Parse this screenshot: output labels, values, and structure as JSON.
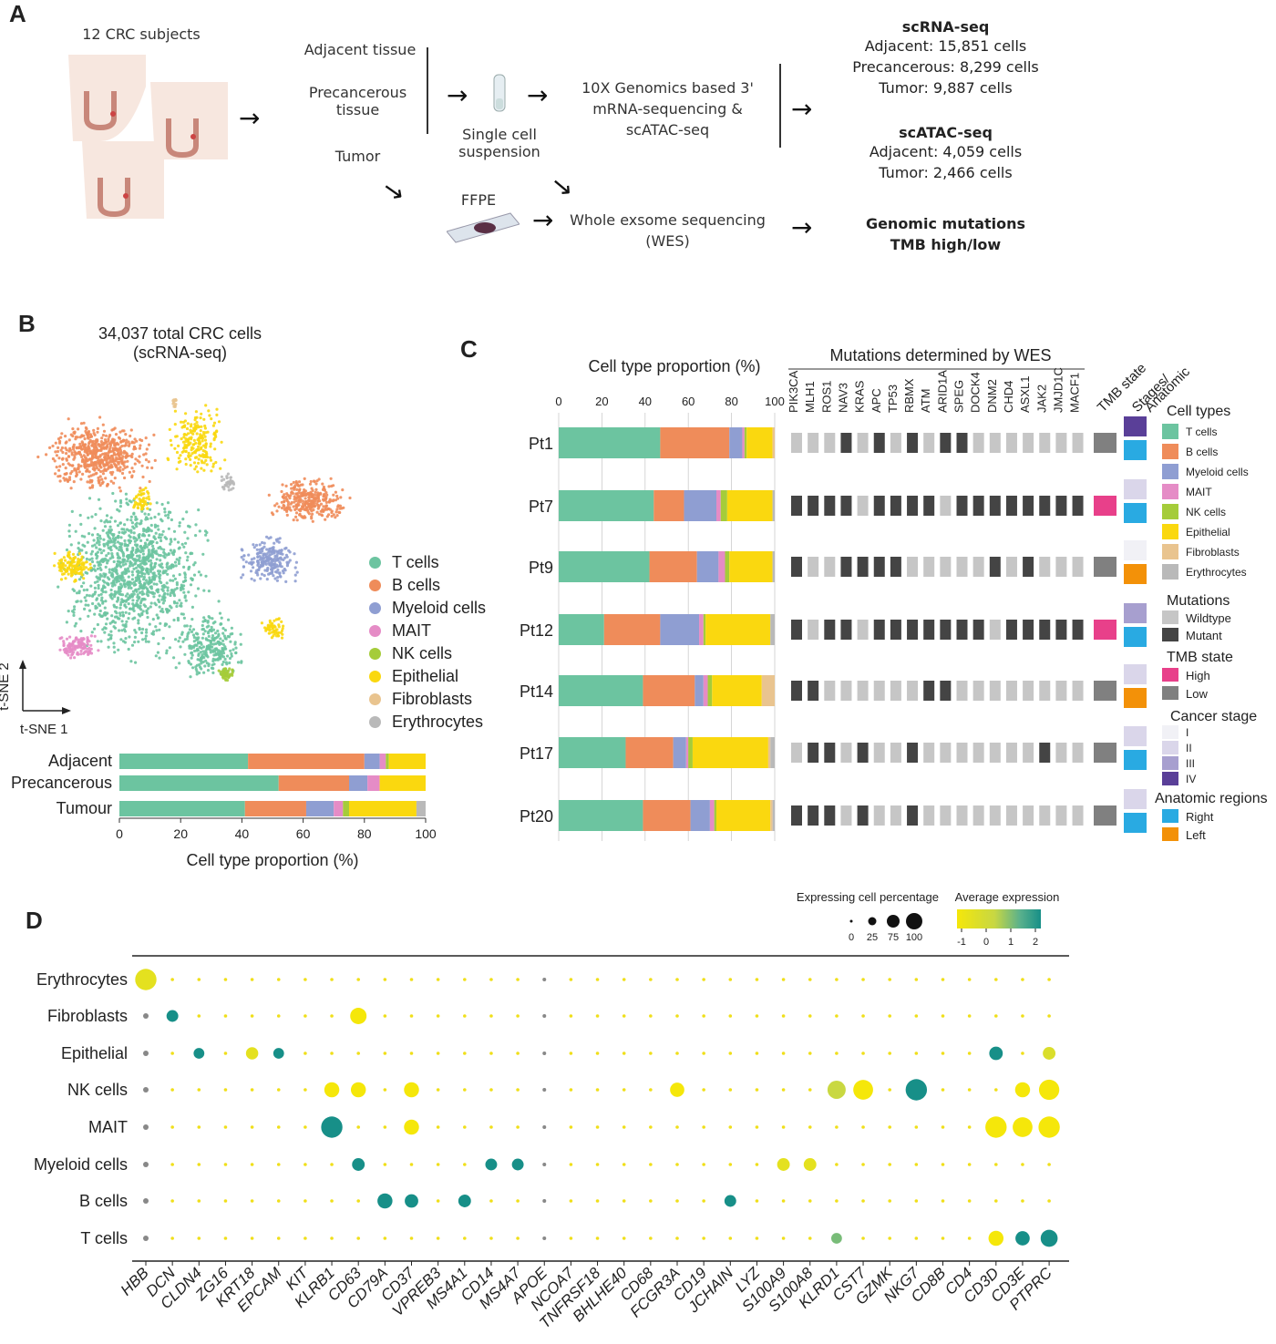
{
  "panelA": {
    "letter": "A",
    "subjects": "12 CRC subjects",
    "tissues": [
      "Adjacent tissue",
      "Precancerous tissue",
      "Tumor"
    ],
    "single_cell": "Single cell suspension",
    "genomics": "10X Genomics based 3' mRNA-sequencing & scATAC-seq",
    "ffpe": "FFPE",
    "wes": "Whole exsome sequencing (WES)",
    "scrna": {
      "title": "scRNA-seq",
      "lines": [
        "Adjacent: 15,851 cells",
        "Precancerous: 8,299 cells",
        "Tumor: 9,887 cells"
      ]
    },
    "scatac": {
      "title": "scATAC-seq",
      "lines": [
        "Adjacent: 4,059 cells",
        "Tumor: 2,466 cells"
      ]
    },
    "genomic": {
      "lines": [
        "Genomic mutations",
        "TMB high/low"
      ]
    },
    "colors": {
      "scrna_bg": "#eef4f1",
      "scatac_bg": "#ecf3d8",
      "genomic_bg": "#f3f1f6"
    }
  },
  "panelB": {
    "letter": "B",
    "title": "34,037 total CRC cells",
    "subtitle": "(scRNA-seq)",
    "axis_y": "t-SNE 2",
    "axis_x": "t-SNE 1",
    "legend": [
      "T cells",
      "B cells",
      "Myeloid cells",
      "MAIT",
      "NK cells",
      "Epithelial",
      "Fibroblasts",
      "Erythrocytes"
    ]
  },
  "panelC": {
    "letter": "C",
    "bar_title": "Cell type proportion (%)",
    "mut_title": "Mutations determined by WES",
    "tmb_header": "TMB state",
    "stage_header": "Stages/ Anatomic",
    "genes": [
      "PIK3CA",
      "MLH1",
      "ROS1",
      "NAV3",
      "KRAS",
      "APC",
      "TP53",
      "RBMX",
      "ATM",
      "ARID1A",
      "SPEG",
      "DOCK4",
      "DNM2",
      "CHD4",
      "ASXL1",
      "JAK2",
      "JMJD1C",
      "MACF1"
    ],
    "legend": {
      "cell_types_title": "Cell types",
      "mutations_title": "Mutations",
      "mutations": [
        "Wildtype",
        "Mutant"
      ],
      "tmb_title": "TMB state",
      "tmb": [
        "High",
        "Low"
      ],
      "stage_title": "Cancer stage",
      "stages": [
        "I",
        "II",
        "III",
        "IV"
      ],
      "anat_title": "Anatomic regions",
      "anat": [
        "Right",
        "Left"
      ]
    },
    "patients": [
      {
        "id": "Pt1",
        "mut": [
          0,
          0,
          0,
          1,
          0,
          1,
          0,
          1,
          0,
          1,
          1,
          0,
          0,
          0,
          0,
          0,
          0,
          0
        ],
        "tmb": "Low",
        "stage": "IV",
        "anat": "Right"
      },
      {
        "id": "Pt7",
        "mut": [
          1,
          1,
          1,
          1,
          0,
          1,
          1,
          1,
          1,
          0,
          1,
          1,
          1,
          1,
          1,
          1,
          1,
          1
        ],
        "tmb": "High",
        "stage": "II",
        "anat": "Right"
      },
      {
        "id": "Pt9",
        "mut": [
          1,
          0,
          0,
          1,
          1,
          1,
          1,
          0,
          0,
          0,
          0,
          0,
          1,
          0,
          1,
          0,
          0,
          0
        ],
        "tmb": "Low",
        "stage": "I",
        "anat": "Left"
      },
      {
        "id": "Pt12",
        "mut": [
          1,
          0,
          1,
          1,
          0,
          1,
          1,
          1,
          1,
          1,
          1,
          1,
          0,
          1,
          1,
          1,
          1,
          1
        ],
        "tmb": "High",
        "stage": "III",
        "anat": "Right"
      },
      {
        "id": "Pt14",
        "mut": [
          1,
          1,
          0,
          0,
          0,
          0,
          0,
          0,
          1,
          1,
          0,
          0,
          0,
          0,
          0,
          0,
          0,
          0
        ],
        "tmb": "Low",
        "stage": "II",
        "anat": "Left"
      },
      {
        "id": "Pt17",
        "mut": [
          0,
          1,
          1,
          0,
          1,
          0,
          0,
          1,
          0,
          0,
          0,
          0,
          0,
          0,
          0,
          1,
          0,
          0
        ],
        "tmb": "Low",
        "stage": "II",
        "anat": "Right"
      },
      {
        "id": "Pt20",
        "mut": [
          1,
          1,
          1,
          0,
          1,
          0,
          0,
          1,
          0,
          0,
          0,
          0,
          0,
          0,
          0,
          0,
          0,
          0
        ],
        "tmb": "Low",
        "stage": "II",
        "anat": "Right"
      }
    ]
  },
  "panelD": {
    "letter": "D",
    "legend_pct_title": "Expressing cell percentage",
    "legend_pct_ticks": [
      "0",
      "25",
      "75",
      "100"
    ],
    "legend_expr_title": "Average expression",
    "legend_expr_ticks": [
      "-1",
      "0",
      "1",
      "2"
    ]
  },
  "colors": {
    "T cells": "#6cc4a0",
    "B cells": "#ef8c5a",
    "Myeloid cells": "#8f9ed2",
    "MAIT": "#e58cc6",
    "NK cells": "#a5cc3a",
    "Epithelial": "#fad80f",
    "Fibroblasts": "#e9c48f",
    "Erythrocytes": "#b9b9b9",
    "wildtype": "#c6c6c6",
    "mutant": "#444444",
    "tmb_high": "#e8408a",
    "tmb_low": "#808080",
    "stage_I": "#f1f1f6",
    "stage_II": "#dad6ea",
    "stage_III": "#a79fcf",
    "stage_IV": "#5a3f98",
    "right": "#29aae2",
    "left": "#f39108"
  },
  "chart_data": [
    {
      "type": "bar",
      "orientation": "horizontal-stacked",
      "categories": [
        "Adjacent",
        "Precancerous",
        "Tumour"
      ],
      "xlabel": "Cell type proportion (%)",
      "xlim": [
        0,
        100
      ],
      "xticks": [
        "0",
        "20",
        "40",
        "60",
        "80",
        "100"
      ],
      "series": [
        {
          "name": "T cells",
          "values": [
            42,
            52,
            41
          ]
        },
        {
          "name": "B cells",
          "values": [
            38,
            23,
            20
          ]
        },
        {
          "name": "Myeloid cells",
          "values": [
            5,
            6,
            9
          ]
        },
        {
          "name": "MAIT",
          "values": [
            2,
            4,
            3
          ]
        },
        {
          "name": "NK cells",
          "values": [
            1,
            0,
            2
          ]
        },
        {
          "name": "Epithelial",
          "values": [
            12,
            15,
            22
          ]
        },
        {
          "name": "Fibroblasts",
          "values": [
            0,
            0,
            0
          ]
        },
        {
          "name": "Erythrocytes",
          "values": [
            0,
            0,
            3
          ]
        }
      ]
    },
    {
      "type": "bar",
      "orientation": "horizontal-stacked",
      "categories": [
        "Pt1",
        "Pt7",
        "Pt9",
        "Pt12",
        "Pt14",
        "Pt17",
        "Pt20"
      ],
      "xlabel": "Cell type proportion (%)",
      "xlim": [
        0,
        100
      ],
      "xticks": [
        "0",
        "20",
        "40",
        "60",
        "80",
        "100"
      ],
      "series": [
        {
          "name": "T cells",
          "values": [
            47,
            44,
            42,
            21,
            39,
            31,
            39
          ]
        },
        {
          "name": "B cells",
          "values": [
            32,
            14,
            22,
            26,
            24,
            22,
            22
          ]
        },
        {
          "name": "Myeloid cells",
          "values": [
            6,
            15,
            10,
            18,
            4,
            6,
            9
          ]
        },
        {
          "name": "MAIT",
          "values": [
            1,
            2,
            3,
            2,
            2,
            1,
            2
          ]
        },
        {
          "name": "NK cells",
          "values": [
            1,
            3,
            2,
            1,
            2,
            2,
            1
          ]
        },
        {
          "name": "Epithelial",
          "values": [
            12,
            21,
            20,
            30,
            23,
            35,
            25
          ]
        },
        {
          "name": "Fibroblasts",
          "values": [
            1,
            0,
            0,
            0,
            6,
            1,
            1
          ]
        },
        {
          "name": "Erythrocytes",
          "values": [
            0,
            1,
            1,
            2,
            0,
            2,
            1
          ]
        }
      ]
    },
    {
      "type": "scatter",
      "subtype": "dotplot",
      "genes": [
        "HBB",
        "DCN",
        "CLDN4",
        "ZG16",
        "KRT18",
        "EPCAM",
        "KIT",
        "KLRB1",
        "CD63",
        "CD79A",
        "CD37",
        "VPREB3",
        "MS4A1",
        "CD14",
        "MS4A7",
        "APOE",
        "NCOA7",
        "TNFRSF18",
        "BHLHE40",
        "CD68",
        "FCGR3A",
        "CD19",
        "JCHAIN",
        "LYZ",
        "S100A9",
        "S100A8",
        "KLRD1",
        "CST7",
        "GZMK",
        "NKG7",
        "CD8B",
        "CD4",
        "CD3D",
        "CD3E",
        "PTPRC"
      ],
      "cell_types": [
        "Erythrocytes",
        "Fibroblasts",
        "Epithelial",
        "NK cells",
        "MAIT",
        "Myeloid cells",
        "B cells",
        "T cells"
      ],
      "pct_range": [
        0,
        100
      ],
      "expr_range": [
        -1,
        2
      ],
      "points": [
        {
          "cell": "Erythrocytes",
          "gene": "HBB",
          "pct": 100,
          "expr": -0.5
        },
        {
          "cell": "Fibroblasts",
          "gene": "DCN",
          "pct": 25,
          "expr": 2
        },
        {
          "cell": "Fibroblasts",
          "gene": "CD63",
          "pct": 55,
          "expr": -1
        },
        {
          "cell": "Epithelial",
          "gene": "CLDN4",
          "pct": 20,
          "expr": 2
        },
        {
          "cell": "Epithelial",
          "gene": "KRT18",
          "pct": 28,
          "expr": -0.5
        },
        {
          "cell": "Epithelial",
          "gene": "EPCAM",
          "pct": 20,
          "expr": 2
        },
        {
          "cell": "Epithelial",
          "gene": "CD3D",
          "pct": 35,
          "expr": 2
        },
        {
          "cell": "Epithelial",
          "gene": "PTPRC",
          "pct": 30,
          "expr": -0.2
        },
        {
          "cell": "NK cells",
          "gene": "KLRB1",
          "pct": 45,
          "expr": -1
        },
        {
          "cell": "NK cells",
          "gene": "CD63",
          "pct": 45,
          "expr": -1
        },
        {
          "cell": "NK cells",
          "gene": "CD37",
          "pct": 45,
          "expr": -1
        },
        {
          "cell": "NK cells",
          "gene": "FCGR3A",
          "pct": 40,
          "expr": -1
        },
        {
          "cell": "NK cells",
          "gene": "KLRD1",
          "pct": 70,
          "expr": 0.3
        },
        {
          "cell": "NK cells",
          "gene": "CST7",
          "pct": 85,
          "expr": -1
        },
        {
          "cell": "NK cells",
          "gene": "NKG7",
          "pct": 100,
          "expr": 2
        },
        {
          "cell": "NK cells",
          "gene": "CD3E",
          "pct": 45,
          "expr": -1
        },
        {
          "cell": "NK cells",
          "gene": "PTPRC",
          "pct": 90,
          "expr": -1
        },
        {
          "cell": "MAIT",
          "gene": "KLRB1",
          "pct": 100,
          "expr": 2
        },
        {
          "cell": "MAIT",
          "gene": "CD37",
          "pct": 45,
          "expr": -1
        },
        {
          "cell": "MAIT",
          "gene": "CD3D",
          "pct": 100,
          "expr": -1
        },
        {
          "cell": "MAIT",
          "gene": "CD3E",
          "pct": 85,
          "expr": -1
        },
        {
          "cell": "MAIT",
          "gene": "PTPRC",
          "pct": 100,
          "expr": -1
        },
        {
          "cell": "Myeloid cells",
          "gene": "CD63",
          "pct": 30,
          "expr": 2
        },
        {
          "cell": "Myeloid cells",
          "gene": "CD14",
          "pct": 25,
          "expr": 2
        },
        {
          "cell": "Myeloid cells",
          "gene": "MS4A7",
          "pct": 25,
          "expr": 2
        },
        {
          "cell": "Myeloid cells",
          "gene": "S100A9",
          "pct": 30,
          "expr": -0.5
        },
        {
          "cell": "Myeloid cells",
          "gene": "S100A8",
          "pct": 30,
          "expr": -0.5
        },
        {
          "cell": "B cells",
          "gene": "CD79A",
          "pct": 45,
          "expr": 2
        },
        {
          "cell": "B cells",
          "gene": "CD37",
          "pct": 35,
          "expr": 2
        },
        {
          "cell": "B cells",
          "gene": "MS4A1",
          "pct": 30,
          "expr": 2
        },
        {
          "cell": "B cells",
          "gene": "JCHAIN",
          "pct": 25,
          "expr": 2
        },
        {
          "cell": "T cells",
          "gene": "KLRD1",
          "pct": 20,
          "expr": 1
        },
        {
          "cell": "T cells",
          "gene": "CD3D",
          "pct": 45,
          "expr": -1
        },
        {
          "cell": "T cells",
          "gene": "CD3E",
          "pct": 40,
          "expr": 2
        },
        {
          "cell": "T cells",
          "gene": "PTPRC",
          "pct": 60,
          "expr": 2
        }
      ]
    }
  ]
}
